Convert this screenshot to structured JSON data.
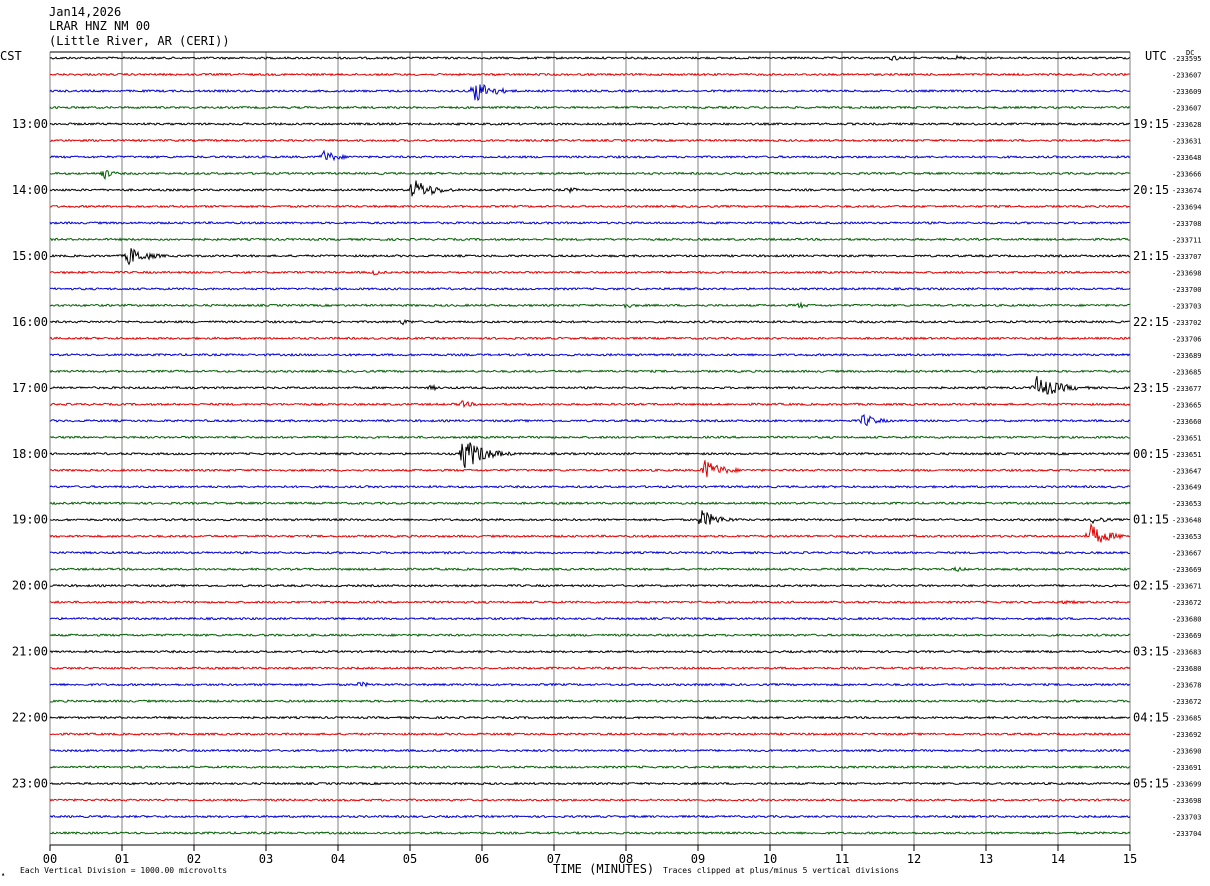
{
  "header": {
    "date": "Jan14,2026",
    "station": "LRAR HNZ NM 00",
    "location": "(Little River, AR (CERI))"
  },
  "labels": {
    "left_timezone": "CST",
    "right_timezone": "UTC",
    "dc_label": "DC",
    "corner_mark": "▴"
  },
  "footer": {
    "vertical_division": "Each Vertical Division = 1000.00 microvolts",
    "clipping_note": "Traces clipped at plus/minus 5 vertical divisions"
  },
  "colors": {
    "trace_cycle": [
      "#000000",
      "#e00000",
      "#0000d0",
      "#006000"
    ],
    "grid": "#808080"
  },
  "chart_data": {
    "type": "line",
    "title": "",
    "xlabel": "TIME (MINUTES)",
    "x_ticks": [
      "00",
      "01",
      "02",
      "03",
      "04",
      "05",
      "06",
      "07",
      "08",
      "09",
      "10",
      "11",
      "12",
      "13",
      "14",
      "15"
    ],
    "xlim": [
      0,
      15
    ],
    "rows_per_hour": 4,
    "minutes_per_row": 15,
    "left_hour_labels": [
      "13:00",
      "14:00",
      "15:00",
      "16:00",
      "17:00",
      "18:00",
      "19:00",
      "20:00",
      "21:00",
      "22:00",
      "23:00"
    ],
    "right_hour_labels": [
      "19:15",
      "20:15",
      "21:15",
      "22:15",
      "23:15",
      "00:15",
      "01:15",
      "02:15",
      "03:15",
      "04:15",
      "05:15"
    ],
    "dc_offsets": [
      "-233595",
      "-233607",
      "-233609",
      "-233607",
      "-233628",
      "-233631",
      "-233648",
      "-233666",
      "-233674",
      "-233694",
      "-233708",
      "-233711",
      "-233707",
      "-233698",
      "-233700",
      "-233703",
      "-233702",
      "-233706",
      "-233689",
      "-233685",
      "-233677",
      "-233665",
      "-233660",
      "-233651",
      "-233651",
      "-233647",
      "-233649",
      "-233653",
      "-233648",
      "-233653",
      "-233667",
      "-233669",
      "-233671",
      "-233672",
      "-233680",
      "-233669",
      "-233683",
      "-233680",
      "-233678",
      "-233672",
      "-233685",
      "-233692",
      "-233690",
      "-233691",
      "-233699",
      "-233698",
      "-233703",
      "-233704"
    ],
    "events": [
      {
        "row": 0,
        "minute": 11.7,
        "amplitude": 3,
        "duration": 0.5
      },
      {
        "row": 0,
        "minute": 12.6,
        "amplitude": 2.5,
        "duration": 0.4
      },
      {
        "row": 2,
        "minute": 5.9,
        "amplitude": 12,
        "duration": 0.6
      },
      {
        "row": 6,
        "minute": 3.8,
        "amplitude": 7,
        "duration": 0.5
      },
      {
        "row": 7,
        "minute": 0.75,
        "amplitude": 6,
        "duration": 0.3
      },
      {
        "row": 8,
        "minute": 5.05,
        "amplitude": 11,
        "duration": 0.7
      },
      {
        "row": 8,
        "minute": 7.2,
        "amplitude": 3,
        "duration": 0.4
      },
      {
        "row": 12,
        "minute": 1.1,
        "amplitude": 10,
        "duration": 0.6
      },
      {
        "row": 13,
        "minute": 4.5,
        "amplitude": 3,
        "duration": 0.4
      },
      {
        "row": 15,
        "minute": 8.0,
        "amplitude": 3,
        "duration": 0.4
      },
      {
        "row": 15,
        "minute": 10.4,
        "amplitude": 3,
        "duration": 0.4
      },
      {
        "row": 16,
        "minute": 4.9,
        "amplitude": 3,
        "duration": 0.4
      },
      {
        "row": 20,
        "minute": 13.7,
        "amplitude": 12,
        "duration": 0.8
      },
      {
        "row": 20,
        "minute": 5.3,
        "amplitude": 3,
        "duration": 0.3
      },
      {
        "row": 21,
        "minute": 5.7,
        "amplitude": 4,
        "duration": 0.5
      },
      {
        "row": 22,
        "minute": 11.3,
        "amplitude": 7,
        "duration": 0.5
      },
      {
        "row": 24,
        "minute": 5.75,
        "amplitude": 17,
        "duration": 0.7
      },
      {
        "row": 25,
        "minute": 9.1,
        "amplitude": 11,
        "duration": 0.6
      },
      {
        "row": 28,
        "minute": 9.05,
        "amplitude": 10,
        "duration": 0.6
      },
      {
        "row": 28,
        "minute": 14.5,
        "amplitude": 4,
        "duration": 0.5
      },
      {
        "row": 29,
        "minute": 14.45,
        "amplitude": 12,
        "duration": 0.6
      },
      {
        "row": 31,
        "minute": 12.6,
        "amplitude": 3,
        "duration": 0.3
      },
      {
        "row": 33,
        "minute": 14.1,
        "amplitude": 3,
        "duration": 0.4
      },
      {
        "row": 38,
        "minute": 4.3,
        "amplitude": 3,
        "duration": 0.5
      }
    ]
  }
}
